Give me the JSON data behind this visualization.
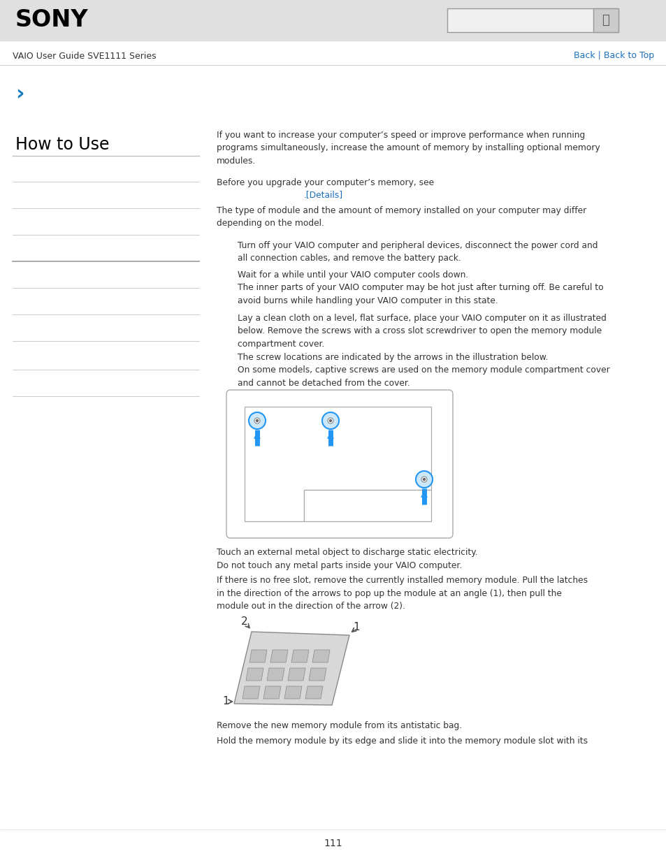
{
  "bg_color": "#ffffff",
  "header_bg": "#e0e0e0",
  "header_text": "SONY",
  "header_text_color": "#000000",
  "nav_text": "VAIO User Guide SVE1111 Series",
  "nav_text_color": "#333333",
  "nav_links": "Back | Back to Top",
  "nav_links_color": "#1a6fbd",
  "breadcrumb_arrow": "›",
  "breadcrumb_color": "#1a7abf",
  "section_title": "How to Use",
  "section_title_color": "#000000",
  "body_text_color": "#333333",
  "link_color": "#1a6fbd",
  "page_number": "111",
  "arrow_color": "#2196F3",
  "diagram_box_border": "#aaaaaa",
  "left_line_color": "#cccccc",
  "left_line_bold_color": "#aaaaaa"
}
